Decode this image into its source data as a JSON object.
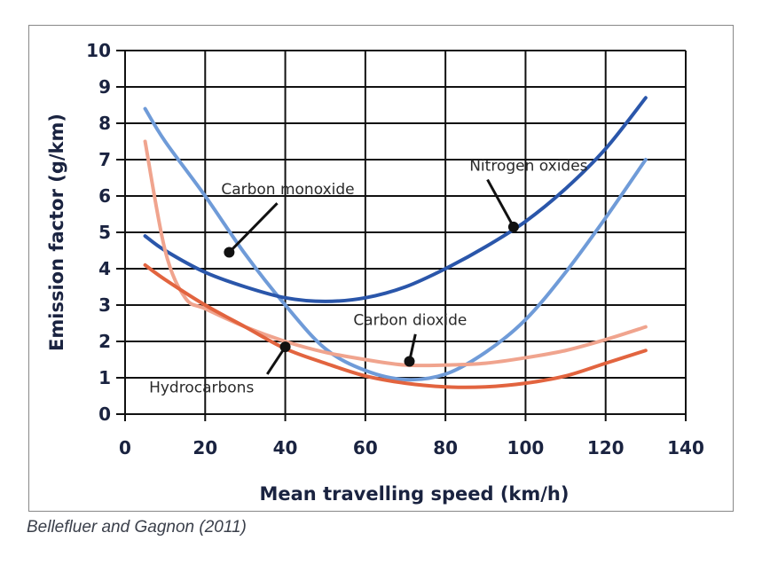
{
  "caption": "Bellefluer and Gagnon (2011)",
  "chart_data": {
    "type": "line",
    "title": "",
    "xlabel": "Mean travelling speed (km/h)",
    "ylabel": "Emission factor (g/km)",
    "xlim": [
      0,
      140
    ],
    "ylim": [
      0,
      10
    ],
    "xticks": [
      "0",
      "20",
      "40",
      "60",
      "80",
      "100",
      "120",
      "140"
    ],
    "yticks": [
      "0",
      "1",
      "2",
      "3",
      "4",
      "5",
      "6",
      "7",
      "8",
      "9",
      "10"
    ],
    "grid": true,
    "series": [
      {
        "name": "Carbon monoxide",
        "color": "#6f9bd8",
        "x": [
          5,
          10,
          20,
          30,
          40,
          50,
          60,
          70,
          80,
          90,
          100,
          110,
          120,
          130
        ],
        "y": [
          8.4,
          7.5,
          6.0,
          4.4,
          3.0,
          1.8,
          1.2,
          0.95,
          1.1,
          1.7,
          2.6,
          3.9,
          5.4,
          7.0
        ],
        "marker_x": 26,
        "marker_y": 4.45
      },
      {
        "name": "Nitrogen oxides",
        "color": "#2a56aa",
        "x": [
          5,
          10,
          20,
          30,
          40,
          50,
          60,
          70,
          80,
          90,
          100,
          110,
          120,
          130
        ],
        "y": [
          4.9,
          4.5,
          3.9,
          3.5,
          3.2,
          3.1,
          3.2,
          3.5,
          4.0,
          4.6,
          5.3,
          6.2,
          7.3,
          8.7
        ],
        "marker_x": 97,
        "marker_y": 5.15
      },
      {
        "name": "Carbon dioxide",
        "color": "#f0a48e",
        "x": [
          5,
          10,
          15,
          20,
          30,
          40,
          50,
          60,
          70,
          80,
          90,
          100,
          110,
          120,
          130
        ],
        "y": [
          7.5,
          4.5,
          3.2,
          2.9,
          2.4,
          2.0,
          1.7,
          1.5,
          1.35,
          1.35,
          1.4,
          1.55,
          1.75,
          2.05,
          2.4
        ],
        "marker_x": 71,
        "marker_y": 1.45
      },
      {
        "name": "Hydrocarbons",
        "color": "#e2643f",
        "x": [
          5,
          10,
          20,
          30,
          40,
          50,
          60,
          70,
          80,
          90,
          100,
          110,
          120,
          130
        ],
        "y": [
          4.1,
          3.7,
          3.0,
          2.4,
          1.8,
          1.4,
          1.05,
          0.85,
          0.75,
          0.75,
          0.85,
          1.05,
          1.4,
          1.75
        ],
        "marker_x": 40,
        "marker_y": 1.85
      }
    ],
    "annotations": [
      {
        "text": "Carbon monoxide",
        "series": "Carbon monoxide"
      },
      {
        "text": "Nitrogen oxides",
        "series": "Nitrogen oxides"
      },
      {
        "text": "Carbon dioxide",
        "series": "Carbon dioxide"
      },
      {
        "text": "Hydrocarbons",
        "series": "Hydrocarbons"
      }
    ]
  }
}
